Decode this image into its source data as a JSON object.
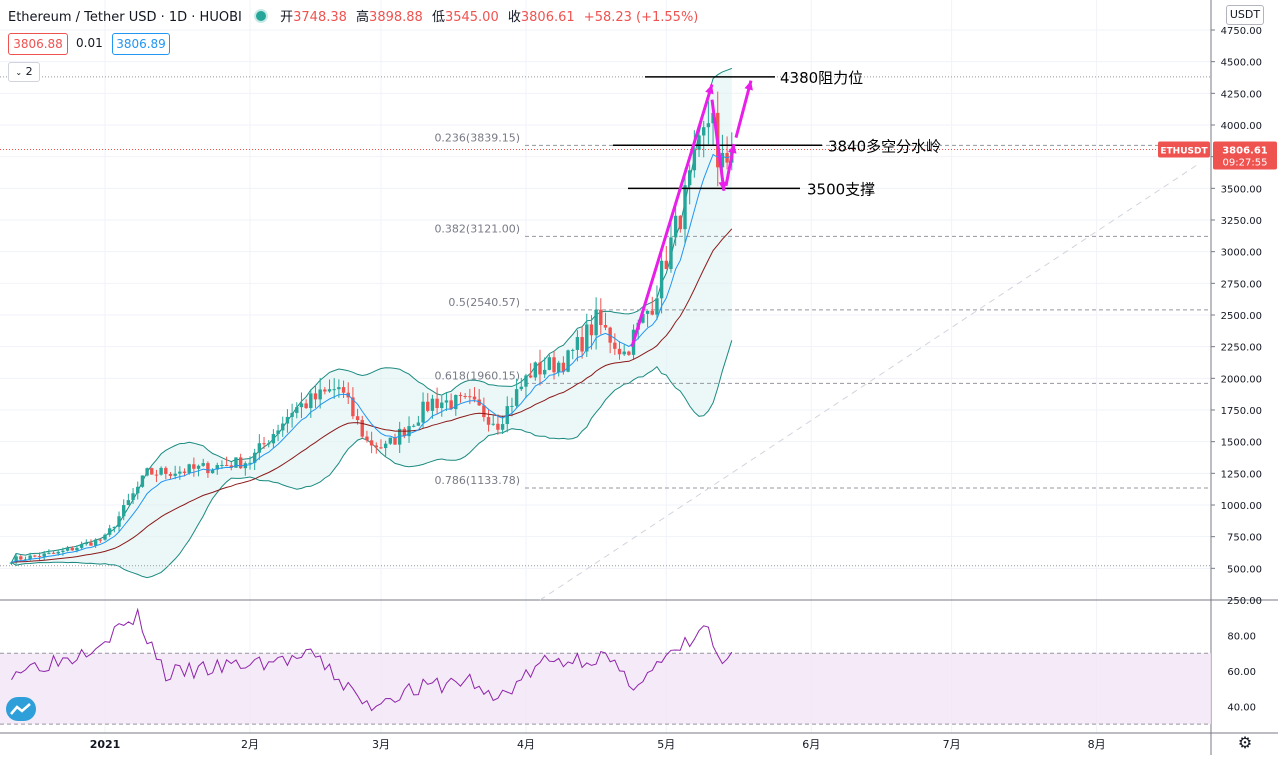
{
  "header": {
    "symbol": "Ethereum / Tether USD · 1D · HUOBI",
    "open_label": "开",
    "open": "3748.38",
    "high_label": "高",
    "high": "3898.88",
    "low_label": "低",
    "low": "3545.00",
    "close_label": "收",
    "close": "3806.61",
    "change": "+58.23 (+1.55%)"
  },
  "quote": {
    "bid": "3806.88",
    "spread": "0.01",
    "ask": "3806.89"
  },
  "studies_count": "2",
  "currency": "USDT",
  "colors": {
    "up": "#26a69a",
    "down": "#ef5350",
    "annotation": "#e91ee9",
    "bollinger": "#1a8a80",
    "ema_fast": "#2196f3",
    "ema_slow": "#8b1a1a",
    "rsi": "#8e24aa"
  },
  "icons": {
    "settings": "gear-icon",
    "logo": "tradingview-logo-icon"
  },
  "chart_data": [
    {
      "type": "candlestick",
      "symbol": "ETHUSDT",
      "ylim": [
        250,
        4750
      ],
      "y_ticks": [
        "250.00",
        "500.00",
        "750.00",
        "1000.00",
        "1250.00",
        "1500.00",
        "1750.00",
        "2000.00",
        "2250.00",
        "2500.00",
        "2750.00",
        "3000.00",
        "3250.00",
        "3500.00",
        "3750.00",
        "4000.00",
        "4250.00",
        "4500.00",
        "4750.00"
      ],
      "x_ticks": [
        "2021",
        "2月",
        "3月",
        "4月",
        "5月",
        "6月",
        "7月",
        "8月"
      ],
      "last_price": "3806.61",
      "countdown": "09:27:55",
      "fib_levels": [
        {
          "label": "0.236(3839.15)",
          "value": 3839.15
        },
        {
          "label": "0.382(3121.00)",
          "value": 3121.0
        },
        {
          "label": "0.5(2540.57)",
          "value": 2540.57
        },
        {
          "label": "0.618(1960.15)",
          "value": 1960.15
        },
        {
          "label": "0.786(1133.78)",
          "value": 1133.78
        }
      ],
      "annotations": [
        {
          "text": "4380阻力位",
          "value": 4380
        },
        {
          "text": "3840多空分水岭",
          "value": 3840
        },
        {
          "text": "3500支撑",
          "value": 3500
        }
      ],
      "price_anchors": [
        {
          "date": "2020-12-12",
          "value": 570
        },
        {
          "date": "2020-12-22",
          "value": 620
        },
        {
          "date": "2021-01-01",
          "value": 740
        },
        {
          "date": "2021-01-10",
          "value": 1250
        },
        {
          "date": "2021-01-20",
          "value": 1280
        },
        {
          "date": "2021-02-01",
          "value": 1350
        },
        {
          "date": "2021-02-10",
          "value": 1750
        },
        {
          "date": "2021-02-20",
          "value": 1930
        },
        {
          "date": "2021-02-26",
          "value": 1500
        },
        {
          "date": "2021-03-02",
          "value": 1450
        },
        {
          "date": "2021-03-12",
          "value": 1820
        },
        {
          "date": "2021-03-20",
          "value": 1800
        },
        {
          "date": "2021-03-26",
          "value": 1650
        },
        {
          "date": "2021-04-02",
          "value": 2050
        },
        {
          "date": "2021-04-10",
          "value": 2150
        },
        {
          "date": "2021-04-16",
          "value": 2450
        },
        {
          "date": "2021-04-22",
          "value": 2200
        },
        {
          "date": "2021-04-28",
          "value": 2600
        },
        {
          "date": "2021-05-04",
          "value": 3300
        },
        {
          "date": "2021-05-09",
          "value": 3900
        },
        {
          "date": "2021-05-11",
          "value": 4180
        },
        {
          "date": "2021-05-12",
          "value": 3600
        },
        {
          "date": "2021-05-15",
          "value": 3800
        }
      ]
    },
    {
      "type": "line",
      "name": "RSI",
      "ylim": [
        25,
        100
      ],
      "y_ticks": [
        "40.00",
        "60.00",
        "80.00"
      ],
      "bands": [
        70,
        30
      ],
      "anchors": [
        {
          "date": "2020-12-12",
          "value": 60
        },
        {
          "date": "2020-12-25",
          "value": 68
        },
        {
          "date": "2021-01-08",
          "value": 90
        },
        {
          "date": "2021-01-14",
          "value": 58
        },
        {
          "date": "2021-02-01",
          "value": 64
        },
        {
          "date": "2021-02-15",
          "value": 68
        },
        {
          "date": "2021-02-26",
          "value": 40
        },
        {
          "date": "2021-03-05",
          "value": 48
        },
        {
          "date": "2021-03-20",
          "value": 55
        },
        {
          "date": "2021-03-25",
          "value": 43
        },
        {
          "date": "2021-04-05",
          "value": 65
        },
        {
          "date": "2021-04-18",
          "value": 68
        },
        {
          "date": "2021-04-23",
          "value": 52
        },
        {
          "date": "2021-05-02",
          "value": 68
        },
        {
          "date": "2021-05-10",
          "value": 85
        },
        {
          "date": "2021-05-12",
          "value": 65
        },
        {
          "date": "2021-05-15",
          "value": 66
        }
      ]
    }
  ]
}
